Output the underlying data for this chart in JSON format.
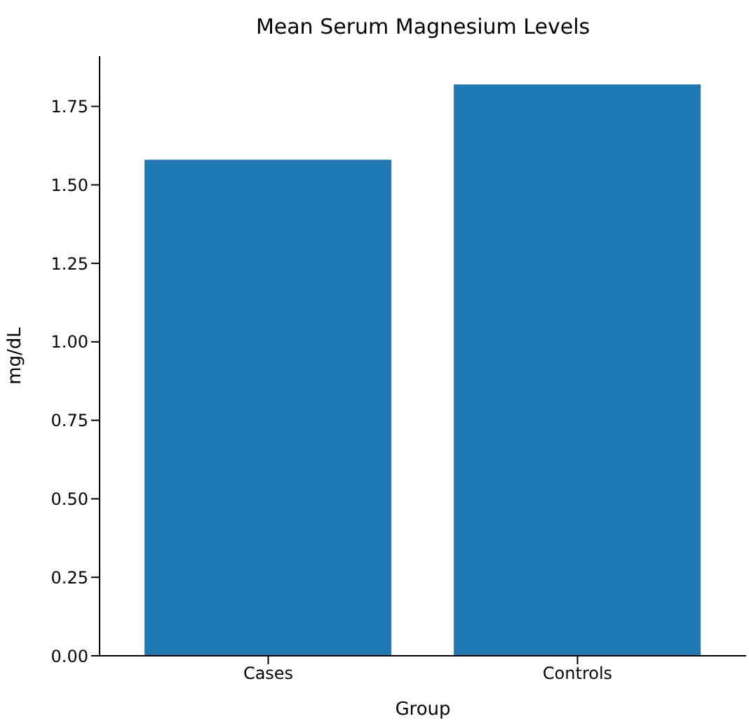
{
  "chart_data": {
    "type": "bar",
    "title": "Mean Serum Magnesium Levels",
    "xlabel": "Group",
    "ylabel": "mg/dL",
    "categories": [
      "Cases",
      "Controls"
    ],
    "values": [
      1.58,
      1.82
    ],
    "color": "#1f77b4",
    "ylim": [
      0,
      1.91
    ],
    "yticks": [
      {
        "value": 0,
        "label": "0.00"
      },
      {
        "value": 0.25,
        "label": "0.25"
      },
      {
        "value": 0.5,
        "label": "0.50"
      },
      {
        "value": 0.75,
        "label": "0.75"
      },
      {
        "value": 1,
        "label": "1.00"
      },
      {
        "value": 1.25,
        "label": "1.25"
      },
      {
        "value": 1.5,
        "label": "1.50"
      },
      {
        "value": 1.75,
        "label": "1.75"
      }
    ],
    "grid": false,
    "legend": false
  }
}
